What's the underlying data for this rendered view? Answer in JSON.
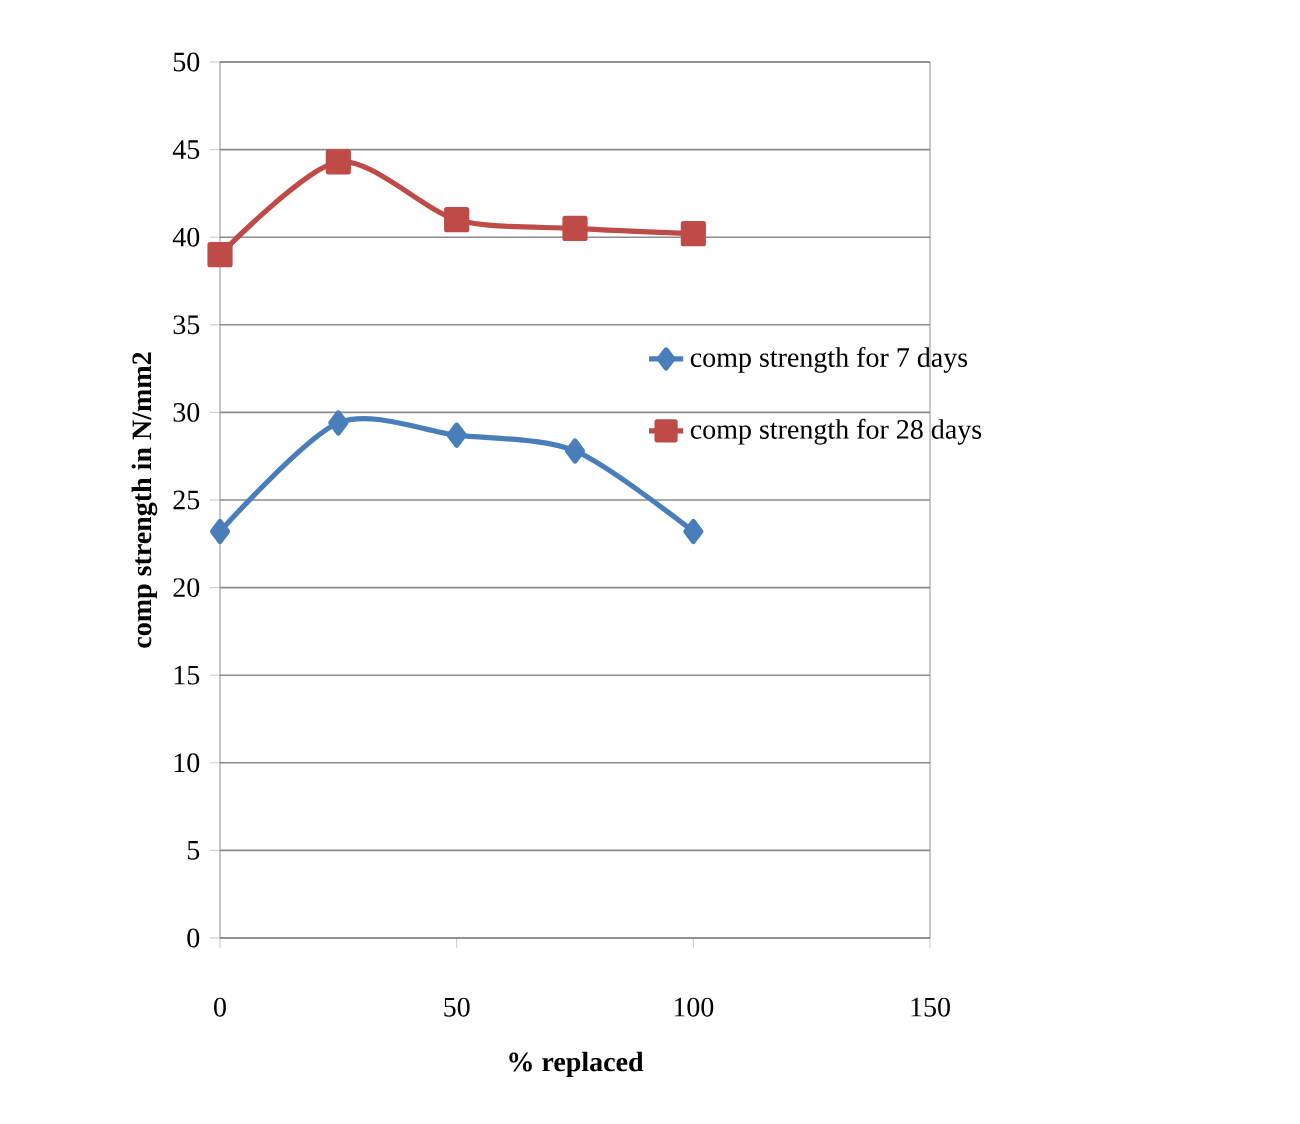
{
  "chart_data": {
    "type": "line",
    "xlabel": "% replaced",
    "ylabel": "comp strength in N/mm2",
    "x": [
      0,
      25,
      50,
      75,
      100
    ],
    "series": [
      {
        "name": "comp strength for 7 days",
        "color": "#4a7ebb",
        "marker": "diamond",
        "values": [
          23.2,
          29.4,
          28.7,
          27.8,
          23.2
        ]
      },
      {
        "name": "comp strength for 28 days",
        "color": "#be4b48",
        "marker": "square",
        "values": [
          39.0,
          44.3,
          41.0,
          40.5,
          40.2
        ]
      }
    ],
    "xlim": [
      0,
      150
    ],
    "xticks": [
      0,
      50,
      100,
      150
    ],
    "ylim": [
      0,
      50
    ],
    "yticks": [
      0,
      5,
      10,
      15,
      20,
      25,
      30,
      35,
      40,
      45,
      50
    ],
    "grid": "y",
    "legend": "right"
  }
}
